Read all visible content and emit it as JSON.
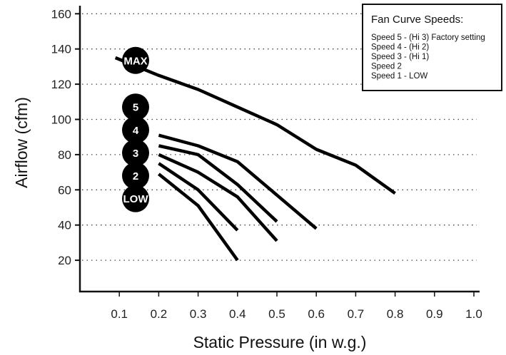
{
  "chart_data": {
    "type": "line",
    "xlabel": "Static Pressure (in w.g.)",
    "ylabel": "Airflow (cfm)",
    "xlim": [
      0,
      1.0
    ],
    "ylim": [
      0,
      165
    ],
    "x_ticks": [
      "0.1",
      "0.2",
      "0.3",
      "0.4",
      "0.5",
      "0.6",
      "0.7",
      "0.8",
      "0.9",
      "1.0"
    ],
    "y_ticks": [
      "20",
      "40",
      "60",
      "80",
      "100",
      "120",
      "140",
      "160"
    ],
    "grid": "horizontal dotted",
    "legend": {
      "title": "Fan Curve Speeds:",
      "items": [
        "Speed 5 - (Hi 3) Factory setting",
        "Speed 4 - (Hi 2)",
        "Speed 3 - (Hi 1)",
        "Speed 2",
        "Speed 1 - LOW"
      ],
      "placement": "top-right"
    },
    "markers": [
      {
        "label": "MAX",
        "y": 133.5
      },
      {
        "label": "5",
        "y": 107
      },
      {
        "label": "4",
        "y": 94
      },
      {
        "label": "3",
        "y": 81
      },
      {
        "label": "2",
        "y": 68
      },
      {
        "label": "LOW",
        "y": 55
      }
    ],
    "series": [
      {
        "x": [
          0.09,
          0.2,
          0.3,
          0.4,
          0.5,
          0.6,
          0.7,
          0.8
        ],
        "y": [
          135,
          125,
          117,
          107,
          97,
          83,
          74,
          58
        ]
      },
      {
        "x": [
          0.2,
          0.3,
          0.4,
          0.5,
          0.6
        ],
        "y": [
          91,
          85,
          76,
          57,
          38
        ]
      },
      {
        "x": [
          0.2,
          0.3,
          0.4,
          0.5
        ],
        "y": [
          85,
          80,
          63,
          42
        ]
      },
      {
        "x": [
          0.2,
          0.3,
          0.4,
          0.5
        ],
        "y": [
          80,
          70,
          56,
          31
        ]
      },
      {
        "x": [
          0.2,
          0.3,
          0.4
        ],
        "y": [
          75,
          60,
          37
        ]
      },
      {
        "x": [
          0.2,
          0.3,
          0.4
        ],
        "y": [
          69,
          51,
          20
        ]
      }
    ]
  }
}
